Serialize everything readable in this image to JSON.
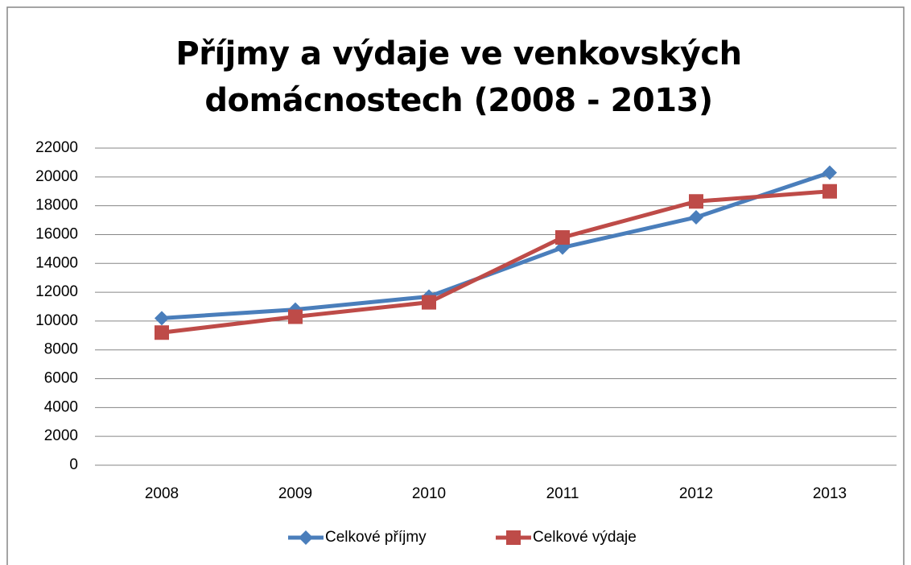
{
  "chart_data": {
    "type": "line",
    "title": "Příjmy a výdaje ve venkovských domácnostech (2008 - 2013)",
    "categories": [
      "2008",
      "2009",
      "2010",
      "2011",
      "2012",
      "2013"
    ],
    "series": [
      {
        "name": "Celkové příjmy",
        "color": "#4a7ebb",
        "marker": "diamond",
        "values": [
          10200,
          10800,
          11700,
          15100,
          17200,
          20300
        ]
      },
      {
        "name": "Celkové výdaje",
        "color": "#be4b48",
        "marker": "square",
        "values": [
          9200,
          10300,
          11300,
          15800,
          18300,
          19000
        ]
      }
    ],
    "ylim": [
      0,
      22000
    ],
    "yticks": [
      0,
      2000,
      4000,
      6000,
      8000,
      10000,
      12000,
      14000,
      16000,
      18000,
      20000,
      22000
    ],
    "grid": true,
    "legend": "bottom"
  }
}
